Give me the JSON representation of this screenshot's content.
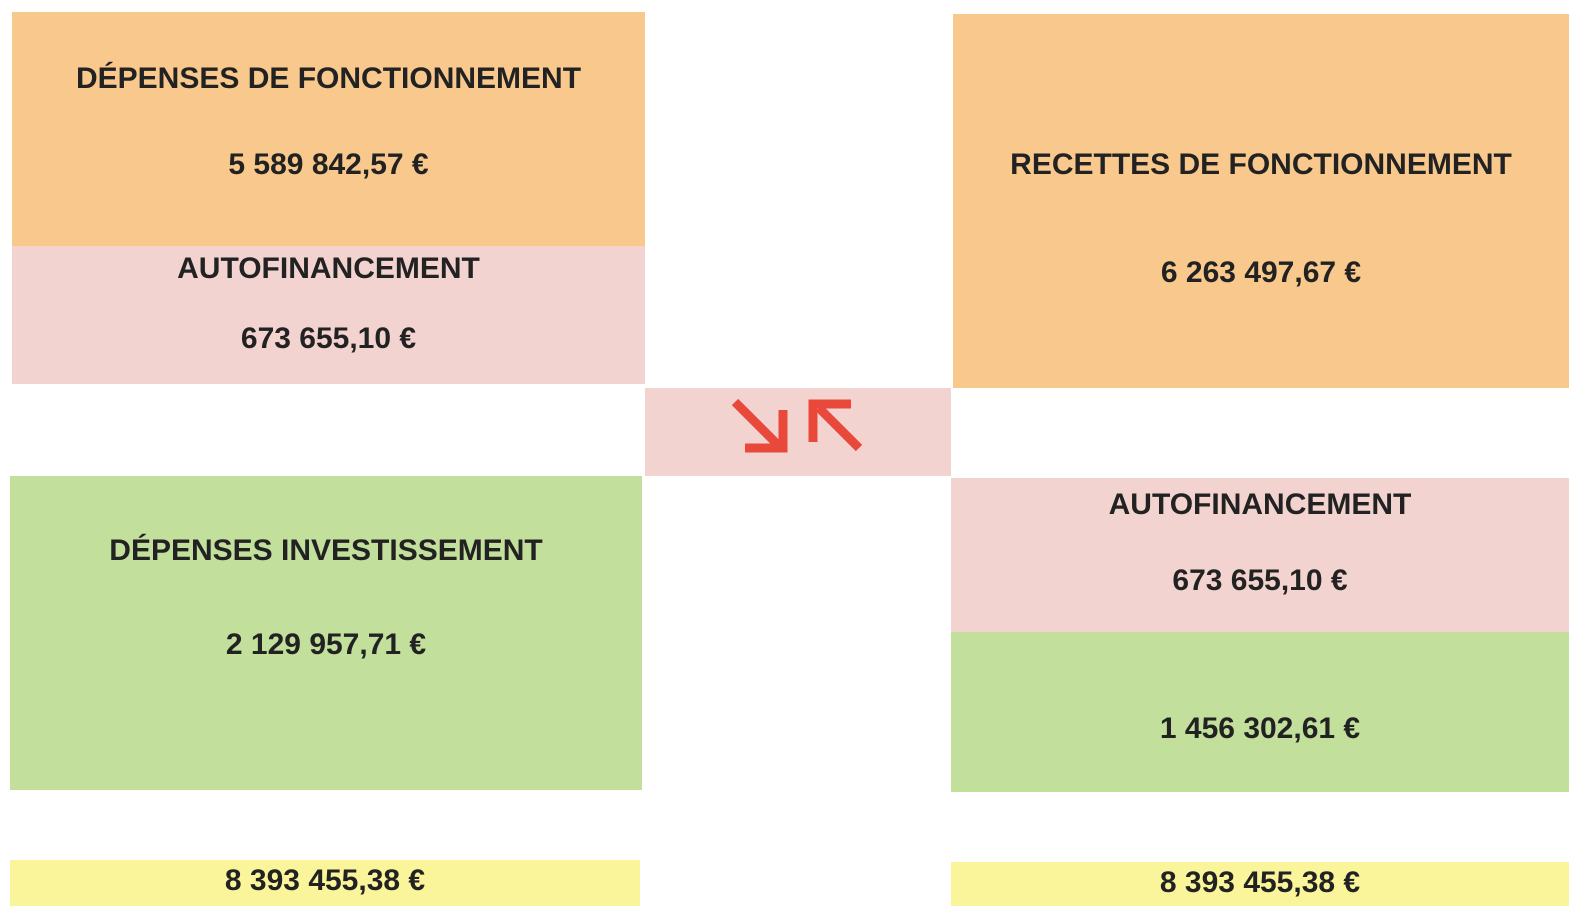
{
  "left": {
    "fonctionnement": {
      "title": "DÉPENSES DE FONCTIONNEMENT",
      "amount": "5 589 842,57 €"
    },
    "autofinancement": {
      "title": "AUTOFINANCEMENT",
      "amount": "673 655,10 €"
    },
    "investissement": {
      "title": "DÉPENSES INVESTISSEMENT",
      "amount": "2 129 957,71 €"
    },
    "total": "8 393 455,38 €"
  },
  "right": {
    "fonctionnement": {
      "title": "RECETTES DE FONCTIONNEMENT",
      "amount": "6 263 497,67 €"
    },
    "autofinancement": {
      "title": "AUTOFINANCEMENT",
      "amount": "673 655,10 €"
    },
    "investissement": {
      "amount": "1 456 302,61 €"
    },
    "total": "8 393 455,38 €"
  }
}
